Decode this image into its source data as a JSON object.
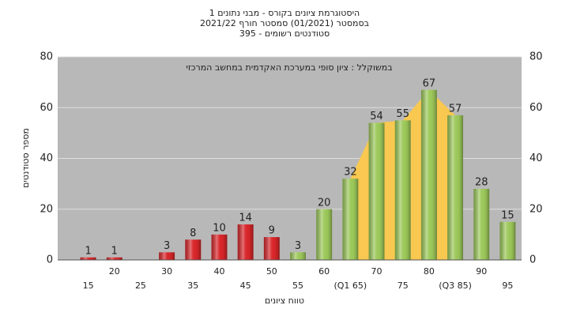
{
  "chart_data": {
    "type": "bar",
    "title": [
      "היסטוגרמת ציונים בקורס - מבני נתונים 1",
      "בסמסטר  (01/2021)  סמסטר חורף 2021/22",
      "סטודנטים רשומים - 395"
    ],
    "annotation": "במשוקלל : ציון סופי במערכת האקדמית במחשב המרכזי",
    "x_label": "טווח ציונים",
    "y_label": "מספר סטודנטים",
    "categories": [
      "15",
      "20",
      "25",
      "30",
      "35",
      "40",
      "45",
      "50",
      "55",
      "60",
      "(Q1 65)",
      "70",
      "75",
      "80",
      "(Q3 85)",
      "90",
      "95"
    ],
    "values": [
      1,
      1,
      0,
      3,
      8,
      10,
      14,
      9,
      3,
      20,
      32,
      54,
      55,
      67,
      57,
      28,
      15
    ],
    "colors": [
      "#d8262a",
      "#d8262a",
      "#d8262a",
      "#d8262a",
      "#d8262a",
      "#d8262a",
      "#d8262a",
      "#d8262a",
      "#9cc85a",
      "#9cc85a",
      "#9cc85a",
      "#9cc85a",
      "#9cc85a",
      "#9cc85a",
      "#9cc85a",
      "#9cc85a",
      "#9cc85a"
    ],
    "band_color": "#f8c850",
    "ylim": [
      0,
      80
    ],
    "yticks": [
      0,
      20,
      40,
      60,
      80
    ],
    "grid": true
  }
}
